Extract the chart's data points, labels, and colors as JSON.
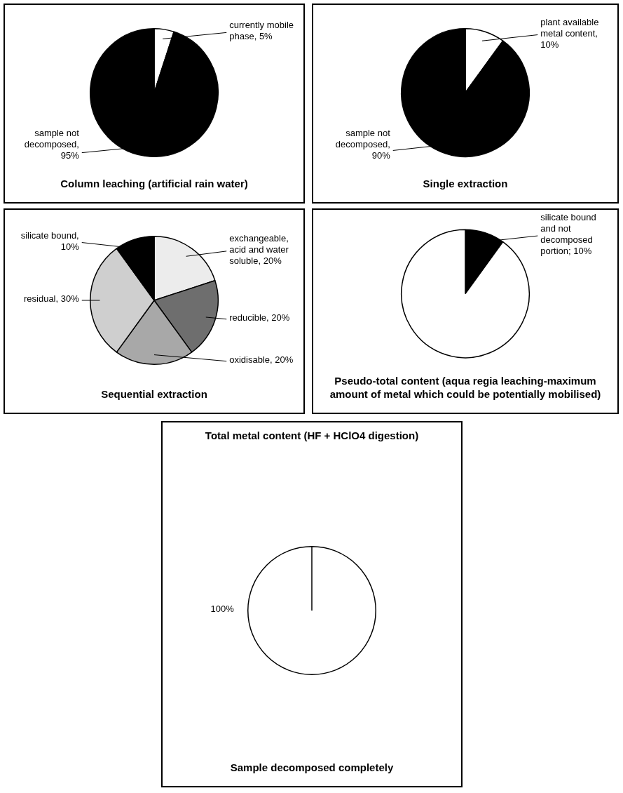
{
  "chart_data": [
    {
      "type": "pie",
      "categories": [
        null,
        null
      ],
      "values": [
        5,
        95
      ],
      "colors": [
        "#ffffff",
        "#000000"
      ],
      "value_labels": [
        "currently mobile phase, 5%",
        "sample not decomposed, 95%"
      ],
      "annotations": [
        "Column leaching (artificial rain water)"
      ]
    },
    {
      "type": "pie",
      "categories": [
        null,
        null
      ],
      "values": [
        10,
        90
      ],
      "colors": [
        "#ffffff",
        "#000000"
      ],
      "value_labels": [
        "plant available metal content, 10%",
        "sample not decomposed, 90%"
      ],
      "annotations": [
        "Single extraction"
      ]
    },
    {
      "type": "pie",
      "categories": [
        null,
        null,
        null,
        null,
        null
      ],
      "values": [
        20,
        20,
        20,
        30,
        10
      ],
      "colors": [
        "#ececec",
        "#6e6e6e",
        "#a8a8a8",
        "#cfcfcf",
        "#000000"
      ],
      "value_labels": [
        "exchangeable, acid and water soluble, 20%",
        "reducible, 20%",
        "oxidisable, 20%",
        "residual, 30%",
        "silicate bound, 10%"
      ],
      "annotations": [
        "Sequential extraction"
      ]
    },
    {
      "type": "pie",
      "categories": [
        null,
        null
      ],
      "values": [
        10,
        90
      ],
      "colors": [
        "#000000",
        "#ffffff"
      ],
      "value_labels": [
        "silicate bound and not decomposed portion; 10%",
        null
      ],
      "annotations": [
        "Pseudo-total content (aqua regia leaching-maximum amount of metal which could be potentially mobilised)"
      ]
    },
    {
      "type": "pie",
      "title": "Total metal content (HF + HClO4 digestion)",
      "categories": [
        null
      ],
      "values": [
        100
      ],
      "colors": [
        "#ffffff"
      ],
      "value_labels": [
        "100%"
      ],
      "annotations": [
        "Sample decomposed completely"
      ]
    }
  ]
}
